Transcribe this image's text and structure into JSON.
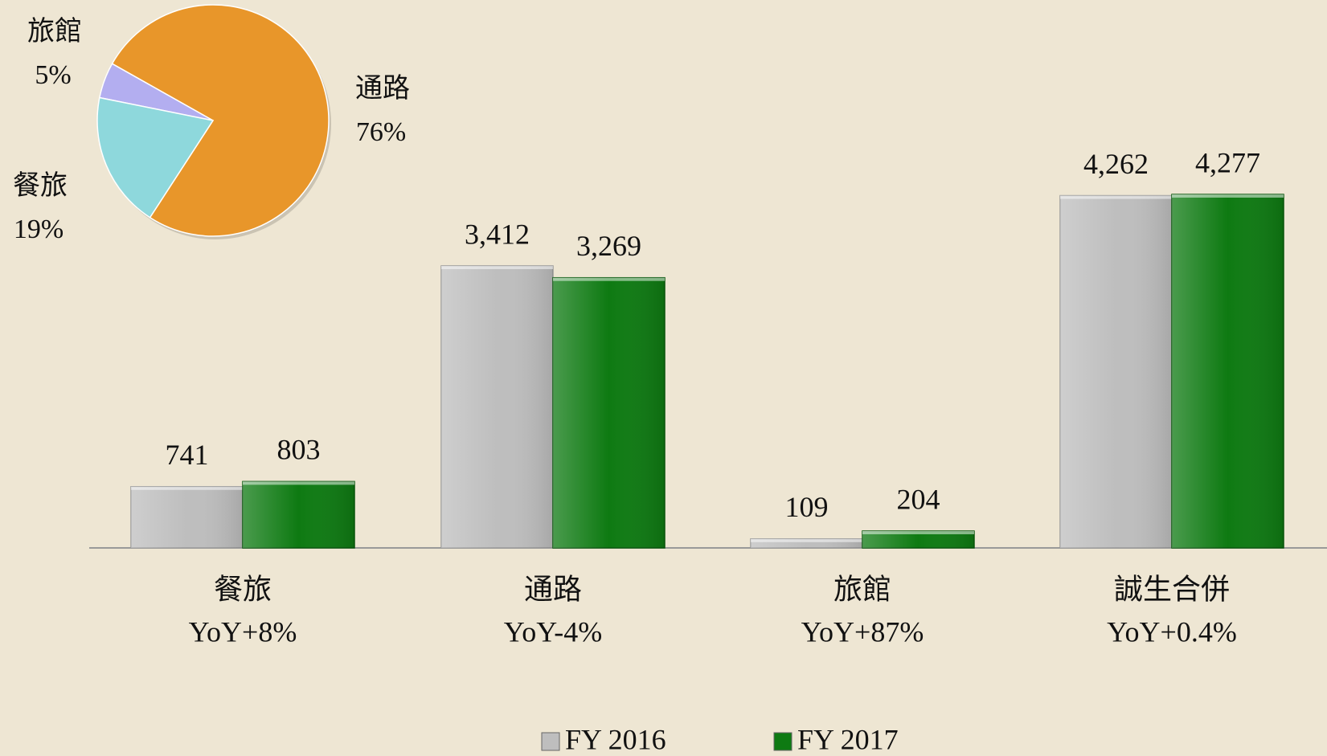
{
  "chart_data": [
    {
      "type": "bar",
      "categories": [
        "餐旅",
        "通路",
        "旅館",
        "誠生合併"
      ],
      "annotations": [
        "YoY+8%",
        "YoY-4%",
        "YoY+87%",
        "YoY+0.4%"
      ],
      "series": [
        {
          "name": "FY 2016",
          "color": "#BEBEBE",
          "values": [
            741,
            3412,
            109,
            4262
          ],
          "value_labels": [
            "741",
            "3,412",
            "109",
            "4,262"
          ]
        },
        {
          "name": "FY 2017",
          "color": "#0E7A12",
          "values": [
            803,
            3269,
            204,
            4277
          ],
          "value_labels": [
            "803",
            "3,269",
            "204",
            "4,277"
          ]
        }
      ],
      "legend": "bottom"
    },
    {
      "type": "pie",
      "categories": [
        "通路",
        "旅館",
        "餐旅"
      ],
      "values": [
        76,
        5,
        19
      ],
      "value_labels": [
        "76%",
        "5%",
        "19%"
      ],
      "colors": [
        "#E8962A",
        "#B3AEF0",
        "#8ED8DC"
      ]
    }
  ]
}
